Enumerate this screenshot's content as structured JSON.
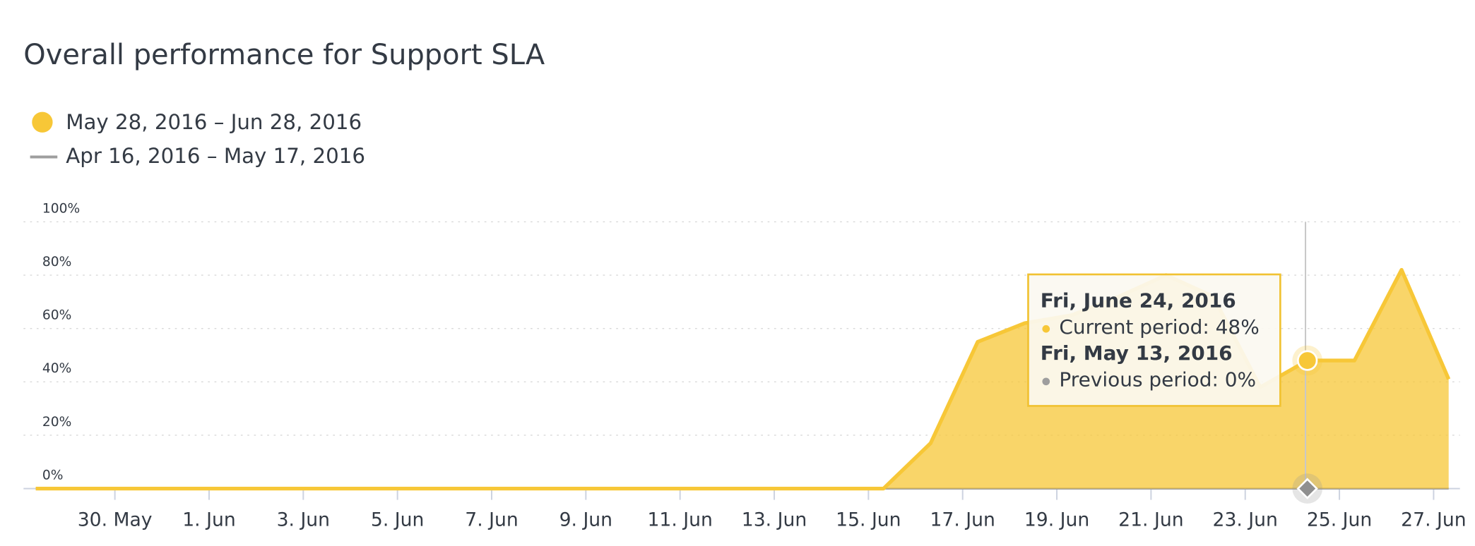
{
  "chart_data": {
    "type": "area",
    "title": "Overall performance for Support SLA",
    "categories": [
      null,
      null,
      "30. May",
      null,
      "1. Jun",
      null,
      "3. Jun",
      null,
      "5. Jun",
      null,
      "7. Jun",
      null,
      "9. Jun",
      null,
      "11. Jun",
      null,
      "13. Jun",
      null,
      "15. Jun",
      null,
      "17. Jun",
      null,
      "19. Jun",
      null,
      "21. Jun",
      null,
      "23. Jun",
      null,
      "25. Jun",
      null,
      "27. Jun"
    ],
    "series": [
      {
        "name": "May 28, 2016 – Jun 28, 2016",
        "color": "#f7c737",
        "values": [
          0,
          0,
          0,
          0,
          0,
          0,
          0,
          0,
          0,
          0,
          0,
          0,
          0,
          0,
          0,
          0,
          0,
          0,
          0,
          17,
          55,
          62,
          65,
          72,
          80,
          72,
          38,
          48,
          48,
          82,
          41
        ]
      },
      {
        "name": "Apr 16, 2016 – May 17, 2016",
        "color": "#9e9e9e",
        "values": [
          0,
          0,
          0,
          0,
          0,
          0,
          0,
          0,
          0,
          0,
          0,
          0,
          0,
          0,
          0,
          0,
          0,
          0,
          0,
          0,
          0,
          0,
          0,
          0,
          0,
          0,
          0,
          0,
          0,
          0,
          0
        ]
      }
    ],
    "ylim": [
      0,
      100
    ],
    "yticks": [
      {
        "value": 0,
        "label": "0%"
      },
      {
        "value": 20,
        "label": "20%"
      },
      {
        "value": 40,
        "label": "40%"
      },
      {
        "value": 60,
        "label": "60%"
      },
      {
        "value": 80,
        "label": "80%"
      },
      {
        "value": 100,
        "label": "100%"
      }
    ],
    "grid": true,
    "tooltip": {
      "index": 27,
      "current_date": "Fri, June 24, 2016",
      "current_text": "Current period: 48%",
      "previous_date": "Fri, May 13, 2016",
      "previous_text": "Previous period: 0%"
    }
  }
}
